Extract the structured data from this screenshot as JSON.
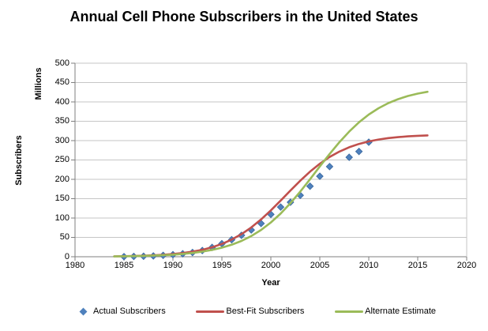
{
  "title": "Annual Cell Phone Subscribers in the United States",
  "colors": {
    "accent_blue": "#4F81BD",
    "diamond_edge": "#39679E",
    "accent_red": "#C0504D",
    "accent_green": "#9BBB59",
    "grid": "#C6C6C6",
    "axis": "#7F7F7F",
    "text": "#000000",
    "background": "#FFFFFF"
  },
  "axis_titles": {
    "y_outer": "Subscribers",
    "y_inner": "Millions",
    "x": "Year"
  },
  "chart_data": {
    "type": "line",
    "title": "Annual Cell Phone Subscribers in the United States",
    "xlabel": "Year",
    "ylabel": "Subscribers (Millions)",
    "xlim": [
      1980,
      2020
    ],
    "ylim": [
      0,
      500
    ],
    "x_ticks": [
      1980,
      1985,
      1990,
      1995,
      2000,
      2005,
      2010,
      2015,
      2020
    ],
    "y_ticks": [
      0,
      50,
      100,
      150,
      200,
      250,
      300,
      350,
      400,
      450,
      500
    ],
    "grid": "horizontal",
    "legend_position": "bottom",
    "series": [
      {
        "name": "Actual Subscribers",
        "type": "scatter",
        "marker": "diamond",
        "color": "#4F81BD",
        "edge": "#39679E",
        "x": [
          1985,
          1986,
          1987,
          1988,
          1989,
          1990,
          1991,
          1992,
          1993,
          1994,
          1995,
          1996,
          1997,
          1998,
          1999,
          2000,
          2001,
          2002,
          2003,
          2004,
          2005,
          2006,
          2008,
          2009,
          2010
        ],
        "y": [
          0.3,
          0.7,
          1.2,
          2.1,
          3.5,
          5.3,
          7.6,
          11,
          16,
          24.1,
          33.8,
          44,
          55.3,
          69.2,
          86,
          109.5,
          128.4,
          140.8,
          158.7,
          182.1,
          207.9,
          233,
          257,
          272,
          296
        ]
      },
      {
        "name": "Best-Fit Subscribers",
        "type": "line",
        "color": "#C0504D",
        "x": [
          1984,
          1985,
          1986,
          1987,
          1988,
          1989,
          1990,
          1991,
          1992,
          1993,
          1994,
          1995,
          1996,
          1997,
          1998,
          1999,
          2000,
          2001,
          2002,
          2003,
          2004,
          2005,
          2006,
          2007,
          2008,
          2009,
          2010,
          2011,
          2012,
          2013,
          2014,
          2015,
          2016
        ],
        "y": [
          1,
          1.4,
          1.9,
          2.6,
          3.6,
          5,
          6.9,
          9.6,
          13.2,
          18,
          24.5,
          33.1,
          44.3,
          58.4,
          75.8,
          96.3,
          119.7,
          145,
          171,
          196.3,
          219.7,
          240.3,
          257.7,
          271.7,
          282.9,
          291.5,
          298,
          302.8,
          306.5,
          309,
          311,
          312.4,
          313.4
        ]
      },
      {
        "name": "Alternate Estimate",
        "type": "line",
        "color": "#9BBB59",
        "x": [
          1984,
          1985,
          1986,
          1987,
          1988,
          1989,
          1990,
          1991,
          1992,
          1993,
          1994,
          1995,
          1996,
          1997,
          1998,
          1999,
          2000,
          2001,
          2002,
          2003,
          2004,
          2005,
          2006,
          2007,
          2008,
          2009,
          2010,
          2011,
          2012,
          2013,
          2014,
          2015,
          2016
        ],
        "y": [
          0.9,
          1.2,
          1.7,
          2.2,
          3,
          4,
          5.4,
          7.3,
          9.8,
          13.2,
          17.6,
          23.4,
          31,
          40.8,
          53.4,
          69.1,
          88.5,
          111.5,
          138.3,
          168.2,
          200.2,
          233.2,
          265.5,
          295.9,
          323.3,
          347.3,
          367.3,
          383.7,
          396.9,
          407.2,
          415.3,
          421.4,
          426.1
        ]
      }
    ]
  }
}
